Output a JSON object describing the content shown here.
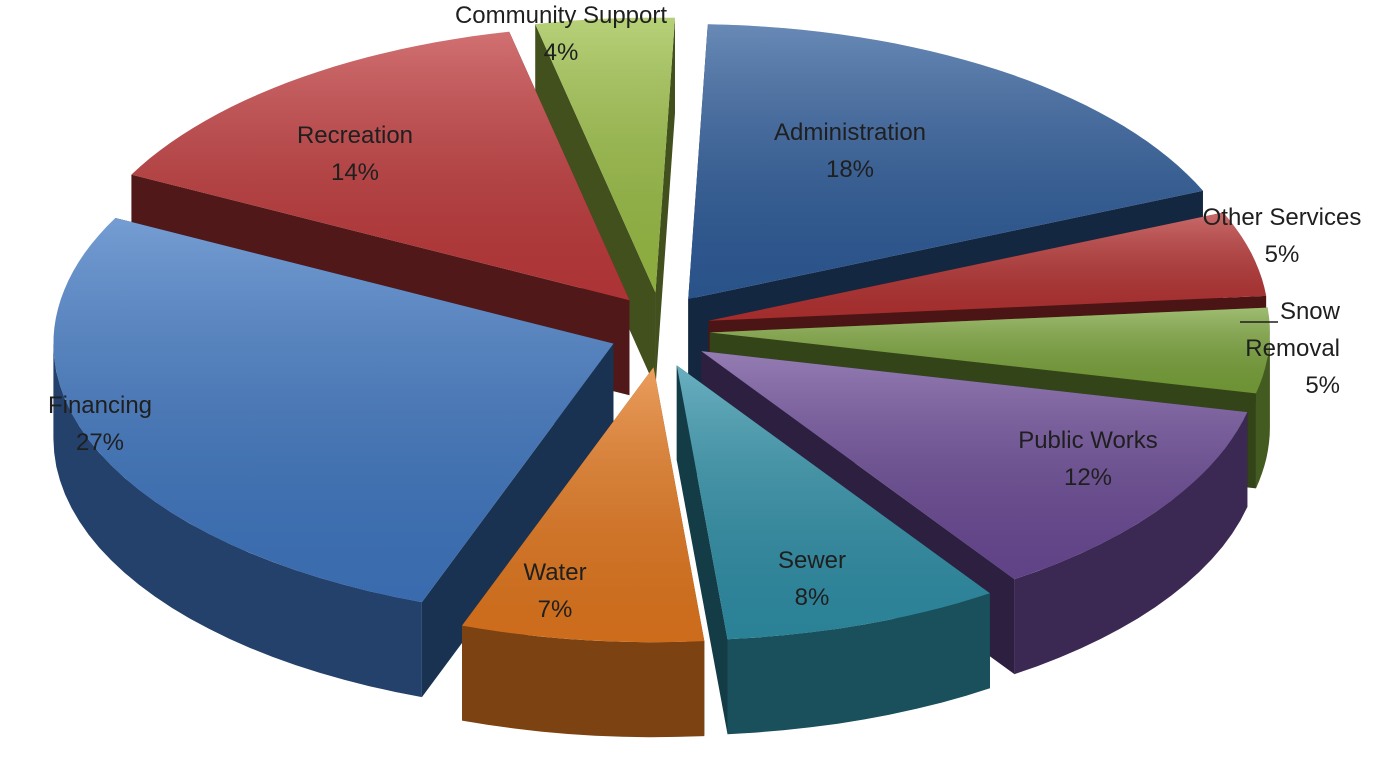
{
  "chart_data": {
    "type": "pie",
    "style": "3d-exploded",
    "legend": "none",
    "slices": [
      {
        "label": "Administration",
        "value": 18,
        "value_label": "18%",
        "color": "#2e5c9a"
      },
      {
        "label": "Other Services",
        "value": 5,
        "value_label": "5%",
        "color": "#b53131"
      },
      {
        "label": "Snow Removal",
        "value": 5,
        "value_label": "5%",
        "color": "#7aa33a"
      },
      {
        "label": "Public Works",
        "value": 12,
        "value_label": "12%",
        "color": "#6b4a96"
      },
      {
        "label": "Sewer",
        "value": 8,
        "value_label": "8%",
        "color": "#2f90a8"
      },
      {
        "label": "Water",
        "value": 7,
        "value_label": "7%",
        "color": "#e4781e"
      },
      {
        "label": "Financing",
        "value": 27,
        "value_label": "27%",
        "color": "#3f77c2"
      },
      {
        "label": "Recreation",
        "value": 14,
        "value_label": "14%",
        "color": "#c0393b"
      },
      {
        "label": "Community Support",
        "value": 4,
        "value_label": "4%",
        "color": "#9bbf45"
      }
    ]
  }
}
